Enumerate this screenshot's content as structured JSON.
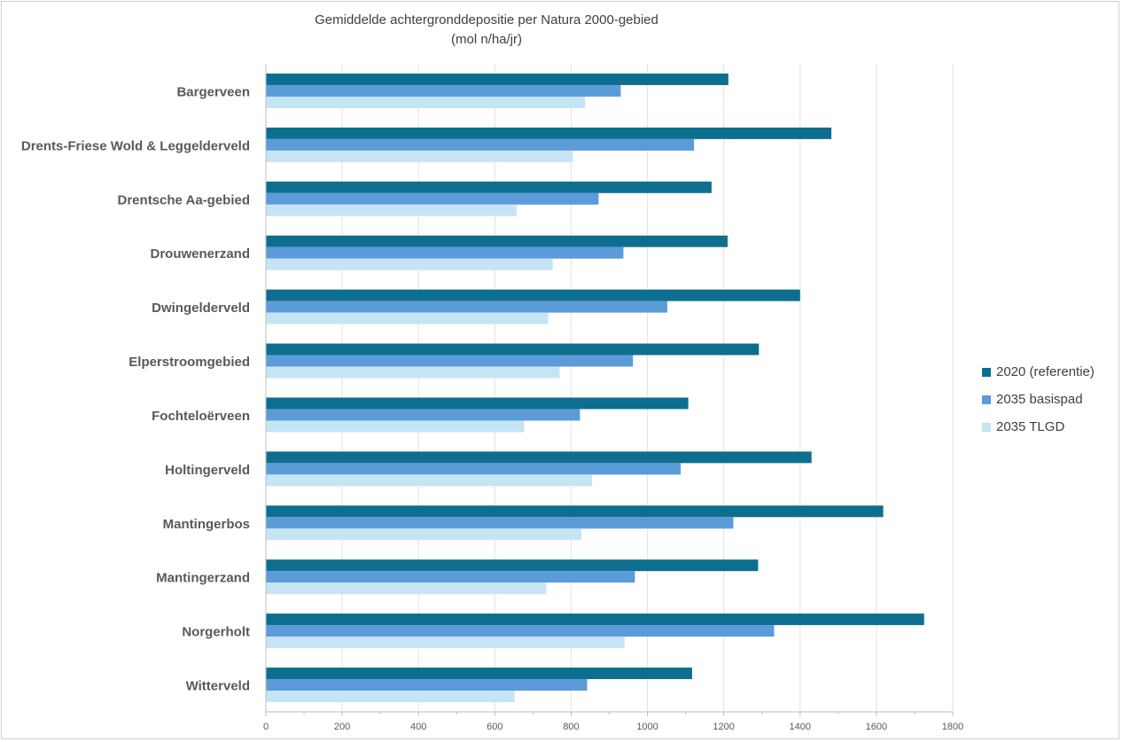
{
  "chart_data": {
    "type": "bar",
    "orientation": "horizontal",
    "title": "Gemiddelde achtergronddepositie per Natura 2000-gebied",
    "subtitle": "(mol n/ha/jr)",
    "categories": [
      "Bargerveen",
      "Drents-Friese Wold & Leggelderveld",
      "Drentsche Aa-gebied",
      "Drouwenerzand",
      "Dwingelderveld",
      "Elperstroomgebied",
      "Fochteloërveen",
      "Holtingerveld",
      "Mantingerbos",
      "Mantingerzand",
      "Norgerholt",
      "Witterveld"
    ],
    "series": [
      {
        "name": "2020 (referentie)",
        "color": "#0e6e8f",
        "values": [
          1212,
          1482,
          1168,
          1210,
          1400,
          1292,
          1107,
          1430,
          1618,
          1290,
          1725,
          1117
        ]
      },
      {
        "name": "2035 basispad",
        "color": "#5a9bd8",
        "values": [
          930,
          1122,
          872,
          937,
          1052,
          962,
          823,
          1087,
          1225,
          967,
          1332,
          842
        ]
      },
      {
        "name": "2035 TLGD",
        "color": "#c6e5f4",
        "values": [
          837,
          805,
          657,
          752,
          740,
          770,
          677,
          855,
          827,
          735,
          940,
          652
        ]
      }
    ],
    "xlim": [
      0,
      1800
    ],
    "xticks": [
      0,
      200,
      400,
      600,
      800,
      1000,
      1200,
      1400,
      1600,
      1800
    ],
    "grid": true,
    "legend_position": "right"
  }
}
